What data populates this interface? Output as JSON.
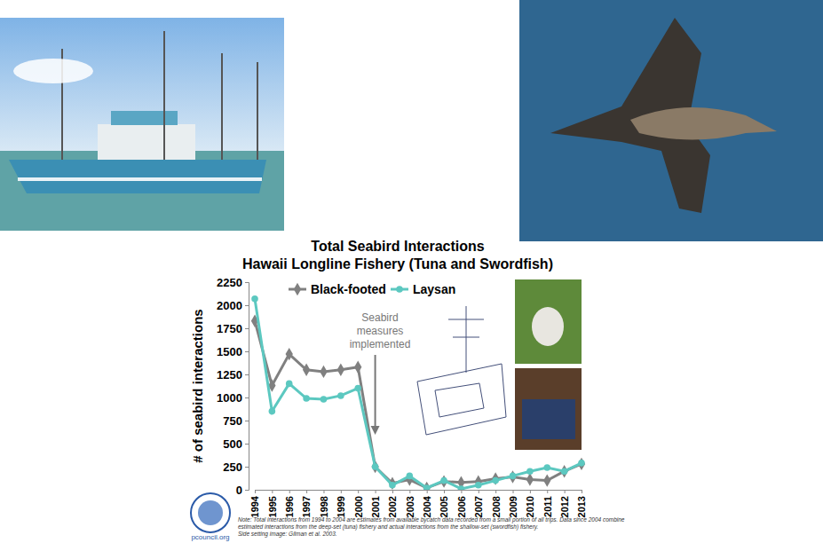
{
  "chart_data": {
    "type": "line",
    "title": [
      "Total Seabird Interactions",
      "Hawaii Longline Fishery (Tuna and Swordfish)"
    ],
    "y_label": "# of seabird interactions",
    "categories": [
      "1994",
      "1995",
      "1996",
      "1997",
      "1998",
      "1999",
      "2000",
      "2001",
      "2002",
      "2003",
      "2004",
      "2005",
      "2006",
      "2007",
      "2008",
      "2009",
      "2010",
      "2011",
      "2012",
      "2013"
    ],
    "series": [
      {
        "name": "Black-footed",
        "color": "#808080",
        "marker": "diamond",
        "values": [
          1830,
          1130,
          1470,
          1300,
          1280,
          1300,
          1330,
          250,
          70,
          110,
          20,
          90,
          80,
          90,
          120,
          140,
          110,
          100,
          200,
          280
        ]
      },
      {
        "name": "Laysan",
        "color": "#5cc8c0",
        "marker": "circle",
        "values": [
          2070,
          850,
          1150,
          990,
          980,
          1020,
          1100,
          250,
          50,
          150,
          20,
          100,
          10,
          50,
          100,
          150,
          200,
          240,
          200,
          290
        ]
      }
    ],
    "ylim": [
      0,
      2250
    ],
    "yticks": [
      0,
      250,
      500,
      750,
      1000,
      1250,
      1500,
      1750,
      2000,
      2250
    ],
    "grid": false,
    "legend": "top-left",
    "annotations": [
      {
        "text": "Seabird measures implemented",
        "x": "2001"
      }
    ],
    "notes": [
      "Note: Total interactions from 1994 to 2004 are estimates from available bycatch data recorded from a small portion of all trips. Data since 2004 combine",
      "estimated interactions from the deep-set (tuna) fishery and actual interactions from the shallow-set (swordfish) fishery.",
      "Side setting image: Gilman et al. 2003."
    ],
    "source": "pcouncil.org"
  }
}
